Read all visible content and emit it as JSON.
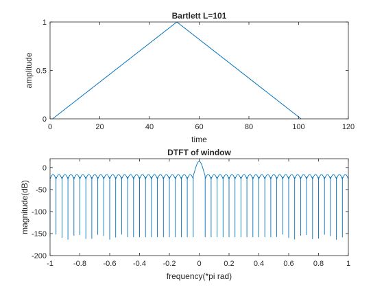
{
  "chart_data": [
    {
      "type": "line",
      "title": "Bartlett L=101",
      "xlabel": "time",
      "ylabel": "amplitude",
      "xlim": [
        0,
        120
      ],
      "ylim": [
        0,
        1
      ],
      "xticks": [
        0,
        20,
        40,
        60,
        80,
        100,
        120
      ],
      "xtick_labels": [
        "0",
        "20",
        "40",
        "60",
        "80",
        "100",
        "120"
      ],
      "yticks": [
        0,
        0.5,
        1
      ],
      "ytick_labels": [
        "0",
        "0.5",
        "1"
      ],
      "grid": false,
      "line_color": "#0072bd",
      "series": [
        {
          "x": [
            1,
            51,
            101
          ],
          "y": [
            0,
            1,
            0
          ]
        }
      ]
    },
    {
      "type": "line",
      "title": "DTFT of window",
      "xlabel": "frequency(*pi rad)",
      "ylabel": "magnitude(dB)",
      "xlim": [
        -1,
        1
      ],
      "ylim": [
        -200,
        20
      ],
      "xticks": [
        -1,
        -0.8,
        -0.6,
        -0.4,
        -0.2,
        0,
        0.2,
        0.4,
        0.6,
        0.8,
        1
      ],
      "xtick_labels": [
        "-1",
        "-0.8",
        "-0.6",
        "-0.4",
        "-0.2",
        "0",
        "0.2",
        "0.4",
        "0.6",
        "0.8",
        "1"
      ],
      "yticks": [
        -200,
        -150,
        -100,
        -50,
        0
      ],
      "ytick_labels": [
        "-200",
        "-150",
        "-100",
        "-50",
        "0"
      ],
      "grid": false,
      "line_color": "#0072bd",
      "peak_db": 14,
      "first_null": 0.04,
      "null_spacing": 0.04,
      "null_depth_db": -158,
      "far_sidelobe_db": -18
    }
  ]
}
